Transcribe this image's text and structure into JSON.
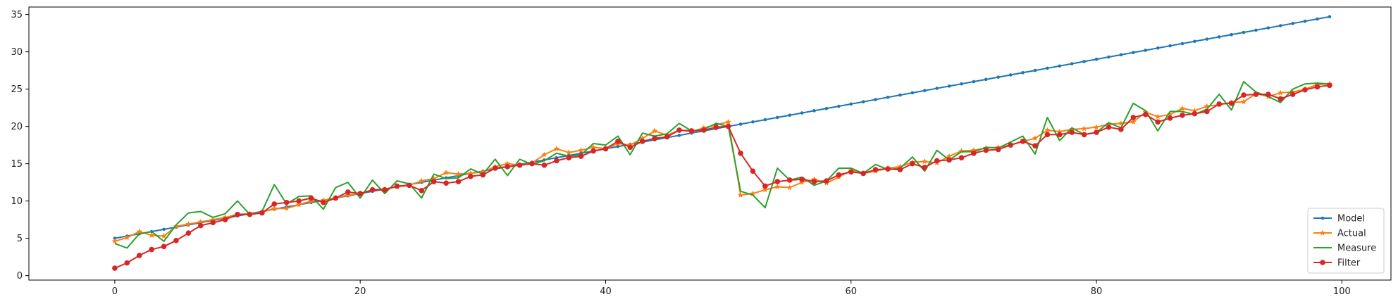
{
  "chart_data": {
    "type": "line",
    "title": "",
    "xlabel": "",
    "ylabel": "",
    "xlim": [
      -7,
      104
    ],
    "ylim": [
      -0.6,
      36
    ],
    "xticks": [
      0,
      20,
      40,
      60,
      80,
      100
    ],
    "yticks": [
      0,
      5,
      10,
      15,
      20,
      25,
      30,
      35
    ],
    "grid": false,
    "legend_position": "lower-right",
    "series": [
      {
        "name": "Model",
        "color": "#1f77b4",
        "marker": "point",
        "x": [
          0,
          1,
          2,
          3,
          4,
          5,
          6,
          7,
          8,
          9,
          10,
          11,
          12,
          13,
          14,
          15,
          16,
          17,
          18,
          19,
          20,
          21,
          22,
          23,
          24,
          25,
          26,
          27,
          28,
          29,
          30,
          31,
          32,
          33,
          34,
          35,
          36,
          37,
          38,
          39,
          40,
          41,
          42,
          43,
          44,
          45,
          46,
          47,
          48,
          49,
          50,
          51,
          52,
          53,
          54,
          55,
          56,
          57,
          58,
          59,
          60,
          61,
          62,
          63,
          64,
          65,
          66,
          67,
          68,
          69,
          70,
          71,
          72,
          73,
          74,
          75,
          76,
          77,
          78,
          79,
          80,
          81,
          82,
          83,
          84,
          85,
          86,
          87,
          88,
          89,
          90,
          91,
          92,
          93,
          94,
          95,
          96,
          97,
          98,
          99
        ],
        "values": [
          5.0,
          5.3,
          5.6,
          5.9,
          6.2,
          6.5,
          6.8,
          7.1,
          7.4,
          7.7,
          8.0,
          8.3,
          8.6,
          8.9,
          9.2,
          9.5,
          9.8,
          10.1,
          10.4,
          10.7,
          11.0,
          11.3,
          11.6,
          11.9,
          12.2,
          12.5,
          12.8,
          13.1,
          13.4,
          13.7,
          14.0,
          14.3,
          14.6,
          14.9,
          15.2,
          15.5,
          15.8,
          16.1,
          16.4,
          16.7,
          17.0,
          17.3,
          17.6,
          17.9,
          18.2,
          18.5,
          18.8,
          19.1,
          19.4,
          19.7,
          20.0,
          20.3,
          20.6,
          20.9,
          21.2,
          21.5,
          21.8,
          22.1,
          22.4,
          22.7,
          23.0,
          23.3,
          23.6,
          23.9,
          24.2,
          24.5,
          24.8,
          25.1,
          25.4,
          25.7,
          26.0,
          26.3,
          26.6,
          26.9,
          27.2,
          27.5,
          27.8,
          28.1,
          28.4,
          28.7,
          29.0,
          29.3,
          29.6,
          29.9,
          30.2,
          30.5,
          30.8,
          31.1,
          31.4,
          31.7,
          32.0,
          32.3,
          32.6,
          32.9,
          33.2,
          33.5,
          33.8,
          34.1,
          34.4,
          34.7
        ]
      },
      {
        "name": "Actual",
        "color": "#ff7f0e",
        "marker": "star",
        "x": [
          0,
          1,
          2,
          3,
          4,
          5,
          6,
          7,
          8,
          9,
          10,
          11,
          12,
          13,
          14,
          15,
          16,
          17,
          18,
          19,
          20,
          21,
          22,
          23,
          24,
          25,
          26,
          27,
          28,
          29,
          30,
          31,
          32,
          33,
          34,
          35,
          36,
          37,
          38,
          39,
          40,
          41,
          42,
          43,
          44,
          45,
          46,
          47,
          48,
          49,
          50,
          51,
          52,
          53,
          54,
          55,
          56,
          57,
          58,
          59,
          60,
          61,
          62,
          63,
          64,
          65,
          66,
          67,
          68,
          69,
          70,
          71,
          72,
          73,
          74,
          75,
          76,
          77,
          78,
          79,
          80,
          81,
          82,
          83,
          84,
          85,
          86,
          87,
          88,
          89,
          90,
          91,
          92,
          93,
          94,
          95,
          96,
          97,
          98,
          99
        ],
        "values": [
          4.6,
          5.1,
          5.9,
          5.4,
          5.3,
          6.6,
          6.9,
          7.2,
          7.5,
          7.8,
          8.2,
          8.3,
          8.5,
          9.0,
          9.0,
          9.5,
          10.0,
          10.1,
          10.4,
          10.8,
          11.0,
          11.5,
          11.6,
          11.9,
          12.1,
          12.7,
          13.0,
          13.8,
          13.6,
          13.7,
          13.9,
          14.6,
          15.0,
          14.8,
          15.1,
          16.2,
          17.0,
          16.5,
          16.8,
          17.2,
          17.0,
          17.7,
          17.5,
          18.4,
          19.4,
          18.8,
          19.5,
          19.3,
          19.8,
          20.2,
          20.6,
          10.8,
          11.0,
          11.5,
          11.9,
          11.8,
          12.5,
          12.9,
          12.4,
          13.2,
          14.1,
          13.7,
          14.0,
          14.4,
          14.6,
          15.2,
          15.3,
          15.1,
          16.0,
          16.7,
          16.8,
          17.1,
          17.2,
          17.5,
          18.0,
          18.4,
          19.5,
          19.3,
          19.6,
          19.7,
          19.9,
          20.3,
          20.4,
          20.6,
          21.9,
          21.3,
          21.6,
          22.4,
          22.1,
          22.7,
          22.9,
          23.2,
          23.3,
          24.4,
          24.0,
          24.5,
          24.6,
          25.0,
          25.6,
          25.7
        ]
      },
      {
        "name": "Measure",
        "color": "#2ca02c",
        "marker": "none",
        "x": [
          0,
          1,
          2,
          3,
          4,
          5,
          6,
          7,
          8,
          9,
          10,
          11,
          12,
          13,
          14,
          15,
          16,
          17,
          18,
          19,
          20,
          21,
          22,
          23,
          24,
          25,
          26,
          27,
          28,
          29,
          30,
          31,
          32,
          33,
          34,
          35,
          36,
          37,
          38,
          39,
          40,
          41,
          42,
          43,
          44,
          45,
          46,
          47,
          48,
          49,
          50,
          51,
          52,
          53,
          54,
          55,
          56,
          57,
          58,
          59,
          60,
          61,
          62,
          63,
          64,
          65,
          66,
          67,
          68,
          69,
          70,
          71,
          72,
          73,
          74,
          75,
          76,
          77,
          78,
          79,
          80,
          81,
          82,
          83,
          84,
          85,
          86,
          87,
          88,
          89,
          90,
          91,
          92,
          93,
          94,
          95,
          96,
          97,
          98,
          99
        ],
        "values": [
          4.3,
          3.7,
          5.6,
          5.9,
          4.6,
          6.8,
          8.4,
          8.6,
          7.8,
          8.3,
          10.0,
          8.2,
          8.6,
          12.2,
          9.6,
          10.6,
          10.7,
          8.9,
          11.8,
          12.5,
          10.4,
          12.8,
          11.0,
          12.7,
          12.3,
          10.4,
          13.6,
          13.0,
          13.1,
          14.3,
          13.6,
          15.6,
          13.4,
          15.6,
          14.9,
          15.4,
          16.4,
          16.0,
          16.2,
          17.7,
          17.5,
          18.7,
          16.2,
          19.1,
          18.7,
          19.0,
          20.4,
          19.4,
          19.6,
          20.4,
          20.0,
          11.3,
          10.8,
          9.1,
          14.4,
          12.8,
          13.2,
          12.1,
          12.7,
          14.4,
          14.4,
          13.7,
          14.9,
          14.2,
          14.4,
          15.9,
          14.0,
          16.8,
          15.5,
          16.6,
          16.6,
          17.2,
          17.1,
          17.9,
          18.7,
          16.3,
          21.2,
          18.1,
          19.8,
          18.9,
          19.2,
          20.5,
          19.8,
          23.1,
          22.1,
          19.4,
          22.0,
          22.0,
          21.6,
          22.3,
          24.3,
          22.2,
          26.0,
          24.6,
          24.0,
          23.2,
          25.0,
          25.7,
          25.8,
          25.7
        ]
      },
      {
        "name": "Filter",
        "color": "#d62728",
        "marker": "circle",
        "x": [
          0,
          1,
          2,
          3,
          4,
          5,
          6,
          7,
          8,
          9,
          10,
          11,
          12,
          13,
          14,
          15,
          16,
          17,
          18,
          19,
          20,
          21,
          22,
          23,
          24,
          25,
          26,
          27,
          28,
          29,
          30,
          31,
          32,
          33,
          34,
          35,
          36,
          37,
          38,
          39,
          40,
          41,
          42,
          43,
          44,
          45,
          46,
          47,
          48,
          49,
          50,
          51,
          52,
          53,
          54,
          55,
          56,
          57,
          58,
          59,
          60,
          61,
          62,
          63,
          64,
          65,
          66,
          67,
          68,
          69,
          70,
          71,
          72,
          73,
          74,
          75,
          76,
          77,
          78,
          79,
          80,
          81,
          82,
          83,
          84,
          85,
          86,
          87,
          88,
          89,
          90,
          91,
          92,
          93,
          94,
          95,
          96,
          97,
          98,
          99
        ],
        "values": [
          1.0,
          1.7,
          2.7,
          3.5,
          3.9,
          4.7,
          5.7,
          6.7,
          7.1,
          7.5,
          8.2,
          8.2,
          8.4,
          9.6,
          9.8,
          10.0,
          10.4,
          9.8,
          10.4,
          11.2,
          11.0,
          11.5,
          11.5,
          12.0,
          12.1,
          11.4,
          12.6,
          12.4,
          12.6,
          13.3,
          13.5,
          14.4,
          14.6,
          14.8,
          15.0,
          14.8,
          15.4,
          15.8,
          16.0,
          16.7,
          17.0,
          18.0,
          17.2,
          18.0,
          18.4,
          18.6,
          19.5,
          19.4,
          19.5,
          19.9,
          20.0,
          16.4,
          14.0,
          12.0,
          12.6,
          12.8,
          12.9,
          12.6,
          12.7,
          13.5,
          13.9,
          13.7,
          14.2,
          14.3,
          14.2,
          15.0,
          14.5,
          15.4,
          15.5,
          15.8,
          16.4,
          16.8,
          16.9,
          17.5,
          18.0,
          17.4,
          18.9,
          18.9,
          19.2,
          18.9,
          19.2,
          19.9,
          19.6,
          21.2,
          21.6,
          20.6,
          21.1,
          21.5,
          21.7,
          22.0,
          23.0,
          23.1,
          24.2,
          24.3,
          24.3,
          23.7,
          24.3,
          24.9,
          25.3,
          25.5
        ]
      }
    ]
  }
}
